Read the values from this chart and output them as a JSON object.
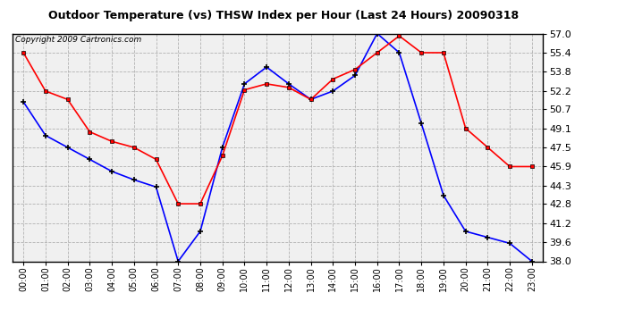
{
  "title": "Outdoor Temperature (vs) THSW Index per Hour (Last 24 Hours) 20090318",
  "copyright": "Copyright 2009 Cartronics.com",
  "hours": [
    0,
    1,
    2,
    3,
    4,
    5,
    6,
    7,
    8,
    9,
    10,
    11,
    12,
    13,
    14,
    15,
    16,
    17,
    18,
    19,
    20,
    21,
    22,
    23
  ],
  "blue_temp": [
    51.3,
    48.5,
    47.5,
    46.5,
    45.5,
    44.8,
    44.2,
    38.0,
    40.5,
    47.5,
    52.8,
    54.2,
    52.8,
    51.5,
    52.2,
    53.5,
    57.0,
    55.4,
    49.5,
    43.5,
    40.5,
    40.0,
    39.5,
    38.0
  ],
  "red_thsw": [
    55.4,
    52.2,
    51.5,
    48.8,
    48.0,
    47.5,
    46.5,
    42.8,
    42.8,
    46.8,
    52.3,
    52.8,
    52.5,
    51.5,
    53.2,
    54.0,
    55.4,
    56.8,
    55.4,
    55.4,
    49.1,
    47.5,
    45.9,
    45.9
  ],
  "ylim": [
    38.0,
    57.0
  ],
  "yticks": [
    38.0,
    39.6,
    41.2,
    42.8,
    44.3,
    45.9,
    47.5,
    49.1,
    50.7,
    52.2,
    53.8,
    55.4,
    57.0
  ],
  "blue_color": "#0000FF",
  "red_color": "#FF0000",
  "bg_color": "#FFFFFF",
  "plot_bg_color": "#F0F0F0",
  "grid_color": "#AAAAAA",
  "title_fontsize": 9,
  "copyright_fontsize": 6.5
}
